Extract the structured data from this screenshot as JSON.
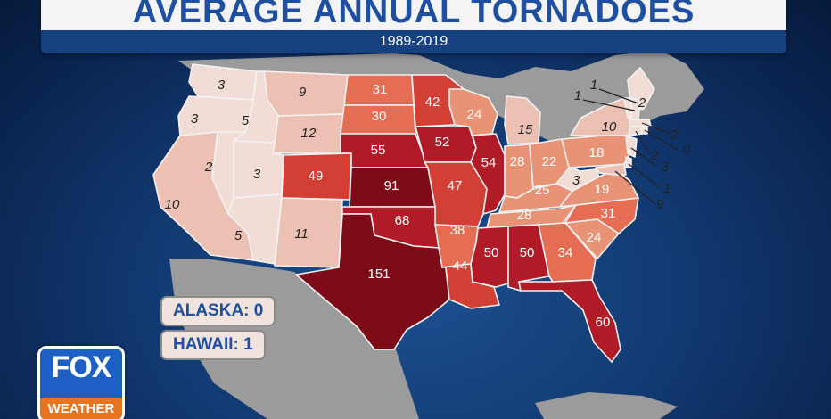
{
  "header": {
    "title": "AVERAGE ANNUAL TORNADOES",
    "subtitle": "1989-2019"
  },
  "insets": {
    "alaska": "ALASKA: 0",
    "hawaii": "HAWAII: 1"
  },
  "logo": {
    "top": "FOX",
    "bottom": "WEATHER"
  },
  "colors": {
    "ocean": "#123a72",
    "land": "#9b9b9b",
    "scale": [
      "#f2dcd6",
      "#ecc1b4",
      "#e89376",
      "#e46d53",
      "#d33f34",
      "#b11b27",
      "#7d0c18"
    ]
  },
  "states": [
    {
      "abbr": "WA",
      "value": "3"
    },
    {
      "abbr": "OR",
      "value": "3"
    },
    {
      "abbr": "CA",
      "value": "10"
    },
    {
      "abbr": "ID",
      "value": "5"
    },
    {
      "abbr": "NV",
      "value": "2"
    },
    {
      "abbr": "MT",
      "value": "9"
    },
    {
      "abbr": "WY",
      "value": "12"
    },
    {
      "abbr": "UT",
      "value": "3"
    },
    {
      "abbr": "AZ",
      "value": "5"
    },
    {
      "abbr": "CO",
      "value": "49"
    },
    {
      "abbr": "NM",
      "value": "11"
    },
    {
      "abbr": "ND",
      "value": "31"
    },
    {
      "abbr": "SD",
      "value": "30"
    },
    {
      "abbr": "NE",
      "value": "55"
    },
    {
      "abbr": "KS",
      "value": "91"
    },
    {
      "abbr": "OK",
      "value": "68"
    },
    {
      "abbr": "TX",
      "value": "151"
    },
    {
      "abbr": "MN",
      "value": "42"
    },
    {
      "abbr": "IA",
      "value": "52"
    },
    {
      "abbr": "MO",
      "value": "47"
    },
    {
      "abbr": "AR",
      "value": "38"
    },
    {
      "abbr": "LA",
      "value": "44"
    },
    {
      "abbr": "WI",
      "value": "24"
    },
    {
      "abbr": "IL",
      "value": "54"
    },
    {
      "abbr": "MI",
      "value": "15"
    },
    {
      "abbr": "IN",
      "value": "28"
    },
    {
      "abbr": "OH",
      "value": "22"
    },
    {
      "abbr": "KY",
      "value": "25"
    },
    {
      "abbr": "TN",
      "value": "28"
    },
    {
      "abbr": "MS",
      "value": "50"
    },
    {
      "abbr": "AL",
      "value": "50"
    },
    {
      "abbr": "GA",
      "value": "34"
    },
    {
      "abbr": "FL",
      "value": "60"
    },
    {
      "abbr": "SC",
      "value": "24"
    },
    {
      "abbr": "NC",
      "value": "31"
    },
    {
      "abbr": "VA",
      "value": "19"
    },
    {
      "abbr": "WV",
      "value": "3"
    },
    {
      "abbr": "PA",
      "value": "18"
    },
    {
      "abbr": "NY",
      "value": "10"
    },
    {
      "abbr": "ME",
      "value": "2"
    },
    {
      "abbr": "VT",
      "value": "1"
    },
    {
      "abbr": "NH",
      "value": "1"
    },
    {
      "abbr": "MA",
      "value": "2"
    },
    {
      "abbr": "CT",
      "value": "2"
    },
    {
      "abbr": "RI",
      "value": "0"
    },
    {
      "abbr": "NJ",
      "value": "3"
    },
    {
      "abbr": "DE",
      "value": "1"
    },
    {
      "abbr": "MD",
      "value": "9"
    }
  ]
}
